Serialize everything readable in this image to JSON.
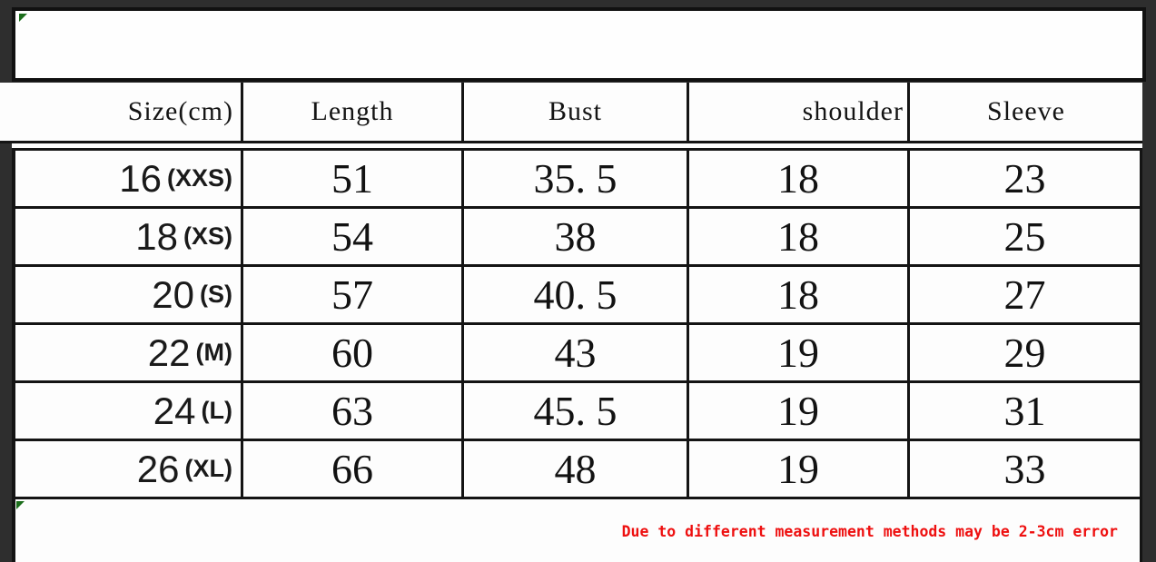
{
  "banner": {
    "text": ""
  },
  "table": {
    "headers": [
      "Size(cm)",
      "Length",
      "Bust",
      "shoulder",
      "Sleeve"
    ],
    "rows": [
      {
        "size": "16",
        "tag": "(XXS)",
        "len": "51",
        "bust": "35. 5",
        "shoulder": "18",
        "sleeve": "23"
      },
      {
        "size": "18",
        "tag": "(XS)",
        "len": "54",
        "bust": "38",
        "shoulder": "18",
        "sleeve": "25"
      },
      {
        "size": "20",
        "tag": "(S)",
        "len": "57",
        "bust": "40. 5",
        "shoulder": "18",
        "sleeve": "27"
      },
      {
        "size": "22",
        "tag": "(M)",
        "len": "60",
        "bust": "43",
        "shoulder": "19",
        "sleeve": "29"
      },
      {
        "size": "24",
        "tag": "(L)",
        "len": "63",
        "bust": "45. 5",
        "shoulder": "19",
        "sleeve": "31"
      },
      {
        "size": "26",
        "tag": "(XL)",
        "len": "66",
        "bust": "48",
        "shoulder": "19",
        "sleeve": "33"
      }
    ]
  },
  "note": {
    "text": "Due to different measurement methods may be 2-3cm error",
    "color": "#ee1010"
  },
  "artifacts": {
    "edge_glyph": "("
  },
  "colors": {
    "background": "#2e2e2e",
    "panel": "#fdfdfd",
    "border": "#141414",
    "marker_green": "#1c6e1c"
  }
}
